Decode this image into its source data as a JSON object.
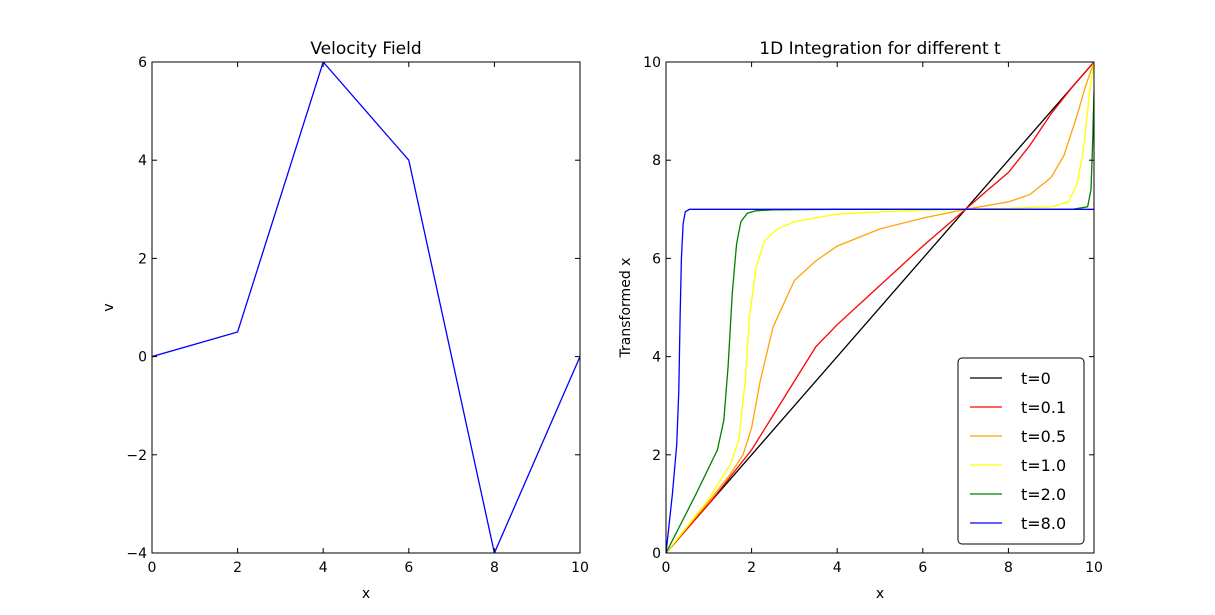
{
  "chart_data": [
    {
      "type": "line",
      "title": "Velocity Field",
      "xlabel": "x",
      "ylabel": "v",
      "xlim": [
        0,
        10
      ],
      "ylim": [
        -4,
        6
      ],
      "xticks": [
        0,
        2,
        4,
        6,
        8,
        10
      ],
      "yticks": [
        -4,
        -2,
        0,
        2,
        4,
        6
      ],
      "grid": false,
      "series": [
        {
          "color": "#0000ff",
          "x": [
            0,
            2,
            4,
            6,
            8,
            10
          ],
          "y": [
            0,
            0.5,
            6,
            4,
            -4,
            0
          ]
        }
      ]
    },
    {
      "type": "line",
      "title": "1D Integration for different t",
      "xlabel": "x",
      "ylabel": "Transformed x",
      "xlim": [
        0,
        10
      ],
      "ylim": [
        0,
        10
      ],
      "xticks": [
        0,
        2,
        4,
        6,
        8,
        10
      ],
      "yticks": [
        0,
        2,
        4,
        6,
        8,
        10
      ],
      "grid": false,
      "legend_position": "lower-right",
      "series": [
        {
          "name": "t=0",
          "color": "#000000",
          "x": [
            0,
            10
          ],
          "y": [
            0,
            10
          ]
        },
        {
          "name": "t=0.1",
          "color": "#ff0000",
          "x": [
            0,
            1,
            2,
            2.5,
            3,
            3.5,
            4,
            5,
            6,
            7,
            7.5,
            8,
            8.5,
            9,
            9.5,
            10
          ],
          "y": [
            0,
            1.0,
            2.1,
            2.8,
            3.5,
            4.2,
            4.65,
            5.45,
            6.25,
            7.0,
            7.38,
            7.75,
            8.3,
            8.95,
            9.5,
            10
          ]
        },
        {
          "name": "t=0.5",
          "color": "#ffa500",
          "x": [
            0,
            1,
            1.5,
            1.8,
            2.0,
            2.2,
            2.5,
            3,
            3.5,
            4,
            5,
            6,
            7,
            8,
            8.5,
            9,
            9.3,
            9.6,
            9.8,
            10
          ],
          "y": [
            0,
            1.05,
            1.6,
            2.0,
            2.55,
            3.5,
            4.6,
            5.55,
            5.95,
            6.25,
            6.6,
            6.82,
            7.0,
            7.15,
            7.3,
            7.65,
            8.1,
            8.9,
            9.5,
            10
          ]
        },
        {
          "name": "t=1.0",
          "color": "#ffff00",
          "x": [
            0,
            1,
            1.5,
            1.7,
            1.85,
            1.95,
            2.1,
            2.3,
            2.6,
            3,
            4,
            5,
            6,
            7,
            8,
            9,
            9.4,
            9.6,
            9.75,
            9.9,
            10
          ],
          "y": [
            0,
            1.1,
            1.8,
            2.3,
            3.5,
            4.8,
            5.8,
            6.35,
            6.6,
            6.75,
            6.9,
            6.95,
            6.98,
            7.0,
            7.02,
            7.05,
            7.15,
            7.5,
            8.2,
            9.4,
            10
          ]
        },
        {
          "name": "t=2.0",
          "color": "#008000",
          "x": [
            0,
            0.7,
            1.2,
            1.35,
            1.45,
            1.55,
            1.65,
            1.75,
            1.9,
            2.1,
            2.5,
            4,
            7,
            9.5,
            9.85,
            9.93,
            9.97,
            10
          ],
          "y": [
            0,
            1.2,
            2.1,
            2.7,
            3.8,
            5.3,
            6.3,
            6.75,
            6.92,
            6.97,
            6.99,
            7.0,
            7.0,
            7.0,
            7.05,
            7.4,
            8.4,
            9.4
          ]
        },
        {
          "name": "t=8.0",
          "color": "#0000ff",
          "x": [
            0,
            0.15,
            0.25,
            0.3,
            0.33,
            0.36,
            0.4,
            0.45,
            0.55,
            1,
            4,
            7,
            10
          ],
          "y": [
            0,
            1.2,
            2.2,
            3.3,
            4.8,
            6.0,
            6.7,
            6.95,
            7.0,
            7.0,
            7.0,
            7.0,
            7.0
          ]
        }
      ]
    }
  ]
}
